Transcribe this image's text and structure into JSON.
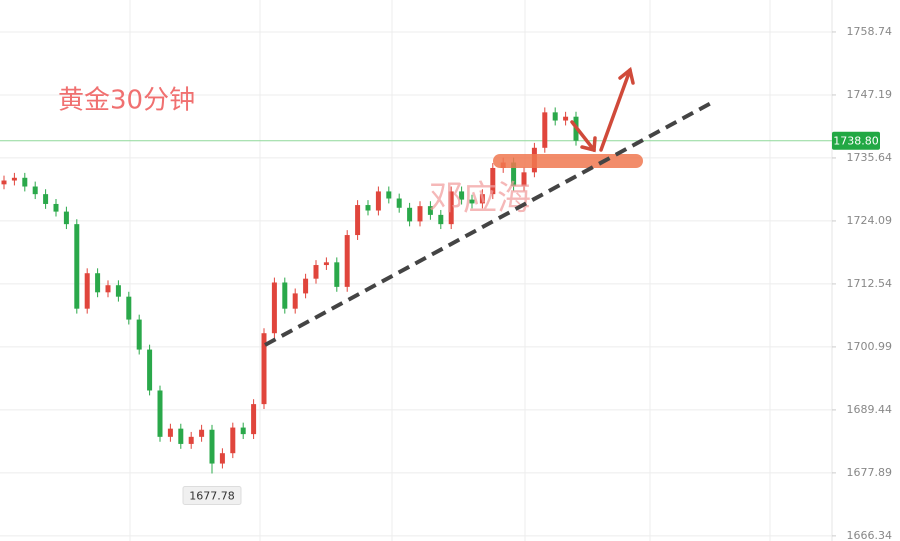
{
  "chart_data": {
    "type": "candlestick",
    "title": "黄金30分钟",
    "watermark": "邓应海",
    "up_color": "#e0453c",
    "down_color": "#2aa84a",
    "ylim": [
      1665.4,
      1764.6
    ],
    "yticks": [
      1666.34,
      1677.89,
      1689.44,
      1700.99,
      1712.54,
      1724.09,
      1735.64,
      1747.19,
      1758.74
    ],
    "grid": true,
    "last_price": {
      "value": 1738.8,
      "label": "1738.80"
    },
    "min_label": 1677.78,
    "open": [
      1730.8,
      1731.5,
      1732.0,
      1730.4,
      1729.0,
      1727.2,
      1725.8,
      1723.5,
      1708.0,
      1714.5,
      1711.0,
      1712.3,
      1710.2,
      1706.0,
      1700.5,
      1693.0,
      1684.5,
      1686.0,
      1683.2,
      1684.5,
      1685.8,
      1679.6,
      1681.5,
      1686.2,
      1685.0,
      1690.5,
      1703.5,
      1712.8,
      1708.0,
      1710.8,
      1713.5,
      1716.0,
      1716.5,
      1712.0,
      1721.5,
      1727.0,
      1726.0,
      1729.5,
      1728.2,
      1726.5,
      1724.0,
      1726.8,
      1725.2,
      1723.5,
      1729.5,
      1728.0,
      1727.3,
      1729.0,
      1733.8,
      1734.8,
      1730.5,
      1733.0,
      1737.5,
      1744.0,
      1742.5,
      1743.2
    ],
    "high": [
      1732.4,
      1732.9,
      1732.9,
      1731.3,
      1729.9,
      1728.1,
      1726.7,
      1724.4,
      1715.4,
      1715.4,
      1713.2,
      1713.2,
      1711.1,
      1706.9,
      1701.4,
      1693.9,
      1686.9,
      1686.9,
      1685.4,
      1686.7,
      1686.7,
      1682.4,
      1687.1,
      1687.1,
      1691.4,
      1704.4,
      1713.7,
      1713.7,
      1711.7,
      1714.4,
      1716.9,
      1717.4,
      1717.4,
      1722.4,
      1727.9,
      1727.9,
      1730.4,
      1730.4,
      1729.1,
      1727.4,
      1727.7,
      1727.7,
      1726.1,
      1730.4,
      1730.4,
      1728.9,
      1729.9,
      1734.7,
      1735.7,
      1735.7,
      1733.9,
      1738.4,
      1744.9,
      1744.9,
      1744.1,
      1744.1
    ],
    "low": [
      1729.9,
      1730.6,
      1729.5,
      1728.1,
      1726.3,
      1724.9,
      1722.6,
      1707.1,
      1707.1,
      1710.1,
      1710.1,
      1709.3,
      1705.1,
      1699.6,
      1692.1,
      1683.6,
      1683.6,
      1682.3,
      1682.3,
      1683.6,
      1677.78,
      1678.7,
      1680.6,
      1684.1,
      1684.1,
      1689.6,
      1702.6,
      1707.1,
      1707.1,
      1709.9,
      1712.6,
      1715.1,
      1711.1,
      1711.1,
      1720.6,
      1725.1,
      1725.1,
      1727.3,
      1725.6,
      1723.1,
      1723.1,
      1724.3,
      1722.6,
      1722.6,
      1727.1,
      1726.4,
      1726.4,
      1728.1,
      1732.9,
      1729.6,
      1729.6,
      1732.1,
      1736.6,
      1741.6,
      1741.6,
      1737.9
    ],
    "close": [
      1731.5,
      1732.0,
      1730.4,
      1729.0,
      1727.2,
      1725.8,
      1723.5,
      1708.0,
      1714.5,
      1711.0,
      1712.3,
      1710.2,
      1706.0,
      1700.5,
      1693.0,
      1684.5,
      1686.0,
      1683.2,
      1684.5,
      1685.8,
      1679.6,
      1681.5,
      1686.2,
      1685.0,
      1690.5,
      1703.5,
      1712.8,
      1708.0,
      1710.8,
      1713.5,
      1716.0,
      1716.5,
      1712.0,
      1721.5,
      1727.0,
      1726.0,
      1729.5,
      1728.2,
      1726.5,
      1724.0,
      1726.8,
      1725.2,
      1723.5,
      1729.5,
      1728.0,
      1727.3,
      1729.0,
      1733.8,
      1734.8,
      1730.5,
      1733.0,
      1737.5,
      1744.0,
      1742.5,
      1743.2,
      1738.8
    ]
  }
}
